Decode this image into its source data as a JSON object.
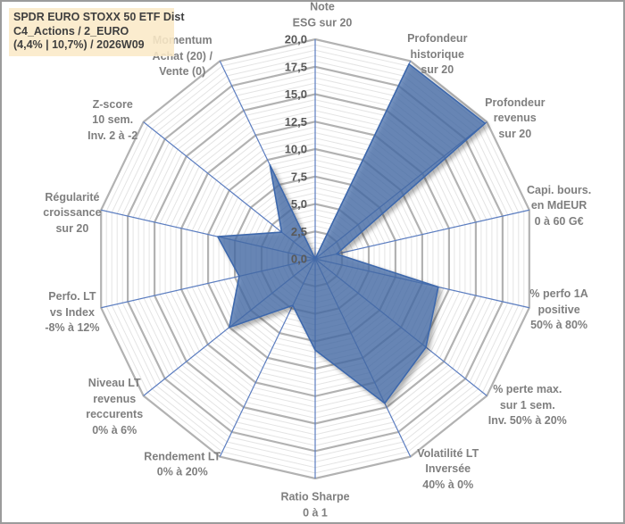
{
  "title_box": {
    "lines": [
      "SPDR EURO STOXX 50 ETF Dist",
      "C4_Actions / 2_EURO",
      "(4,4% | 10,7%) / 2026W09"
    ],
    "bg_color": "#FAE9C7"
  },
  "chart_data": {
    "type": "radar",
    "rmin": 0,
    "rmax": 20,
    "major_step": 2.5,
    "minor_step": 0.5,
    "grid": "on",
    "legend": "none",
    "tick_labels": [
      "0,0",
      "2,5",
      "5,0",
      "7,5",
      "10,0",
      "12,5",
      "15,0",
      "17,5",
      "20,0"
    ],
    "axes": [
      {
        "id": "note-esg",
        "label": "Note ESG sur 20",
        "lines": [
          "Note",
          "ESG sur 20"
        ],
        "value": 0.0
      },
      {
        "id": "profondeur-historique",
        "label": "Profondeur historique sur 20",
        "lines": [
          "Profondeur",
          "historique",
          "sur 20"
        ],
        "value": 19.7
      },
      {
        "id": "profondeur-revenus",
        "label": "Profondeur revenus sur 20",
        "lines": [
          "Profondeur",
          "revenus",
          "sur 20"
        ],
        "value": 19.8
      },
      {
        "id": "capi-bours",
        "label": "Capi. bours. en MdEUR 0 à 60 G€",
        "lines": [
          "Capi. bours.",
          "en MdEUR",
          "0 à 60 G€"
        ],
        "value": 2.0
      },
      {
        "id": "perfo-1a-positive",
        "label": "% perfo 1A positive 50% à 80%",
        "lines": [
          "% perfo 1A",
          "positive",
          "50% à 80%"
        ],
        "value": 11.5
      },
      {
        "id": "perte-max-1-sem",
        "label": "% perte max. sur 1 sem. Inv. 50% à 20%",
        "lines": [
          "% perte max.",
          "sur 1 sem.",
          "Inv. 50% à 20%"
        ],
        "value": 12.9
      },
      {
        "id": "volatilite-lt",
        "label": "Volatilité LT Inversée 40% à 0%",
        "lines": [
          "Volatilité LT",
          "Inversée",
          "40% à 0%"
        ],
        "value": 14.6
      },
      {
        "id": "ratio-sharpe",
        "label": "Ratio Sharpe 0 à 1",
        "lines": [
          "Ratio Sharpe",
          "0 à 1"
        ],
        "value": 8.3
      },
      {
        "id": "rendement-lt",
        "label": "Rendement LT 0% à 20%",
        "lines": [
          "Rendement LT",
          "0% à 20%"
        ],
        "value": 4.7
      },
      {
        "id": "niveau-lt-revenus",
        "label": "Niveau LT revenus reccurents 0% à 6%",
        "lines": [
          "Niveau LT",
          "revenus",
          "reccurents",
          "0% à 6%"
        ],
        "value": 10.0
      },
      {
        "id": "perfo-lt-vs-index",
        "label": "Perfo. LT vs Index -8% à 12%",
        "lines": [
          "Perfo. LT",
          "vs Index",
          "-8% à 12%"
        ],
        "value": 7.1
      },
      {
        "id": "regularite-croissance",
        "label": "Régularité croissance sur 20",
        "lines": [
          "Régularité",
          "croissance",
          "sur 20"
        ],
        "value": 9.1
      },
      {
        "id": "z-score",
        "label": "Z-score 10 sem. Inv. 2 à -2",
        "lines": [
          "Z-score",
          "10 sem.",
          "Inv. 2 à -2"
        ],
        "value": 3.9
      },
      {
        "id": "momentum",
        "label": "Momentum Achat (20) / Vente (0)",
        "lines": [
          "Momentum",
          "Achat (20) /",
          "Vente (0)"
        ],
        "value": 9.5
      }
    ],
    "colors": {
      "series_fill": "rgba(70,110,170,0.72)",
      "series_stroke": "#3e68ac",
      "spoke": "#5b7dc0",
      "major_grid": "#b2b2b2",
      "minor_grid": "#e4e4e4",
      "tick_text": "#595959",
      "axis_text": "#7f7f7f"
    }
  }
}
